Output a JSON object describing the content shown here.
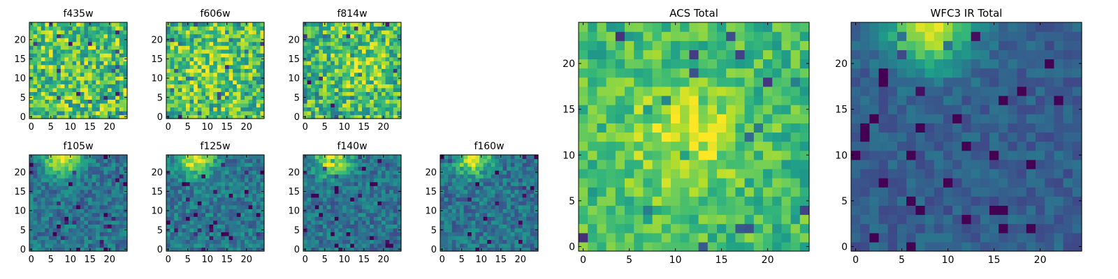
{
  "chart_data": [
    {
      "type": "heatmap",
      "title": "f435w",
      "colormap": "viridis",
      "grid_size": [
        25,
        25
      ],
      "xlim": [
        -0.5,
        24.5
      ],
      "ylim": [
        -0.5,
        24.5
      ],
      "xticks": [
        0,
        5,
        10,
        15,
        20
      ],
      "yticks": [
        0,
        5,
        10,
        15,
        20
      ],
      "xlabel": "",
      "ylabel": "",
      "bright_spot": null,
      "noise_level": "high",
      "mean_level": 0.72
    },
    {
      "type": "heatmap",
      "title": "f606w",
      "colormap": "viridis",
      "grid_size": [
        25,
        25
      ],
      "xlim": [
        -0.5,
        24.5
      ],
      "ylim": [
        -0.5,
        24.5
      ],
      "xticks": [
        0,
        5,
        10,
        15,
        20
      ],
      "yticks": [
        0,
        5,
        10,
        15,
        20
      ],
      "xlabel": "",
      "ylabel": "",
      "bright_spot": {
        "x": 11,
        "y": 12,
        "strength": 0.15
      },
      "noise_level": "high",
      "mean_level": 0.7
    },
    {
      "type": "heatmap",
      "title": "f814w",
      "colormap": "viridis",
      "grid_size": [
        25,
        25
      ],
      "xlim": [
        -0.5,
        24.5
      ],
      "ylim": [
        -0.5,
        24.5
      ],
      "xticks": [
        0,
        5,
        10,
        15,
        20
      ],
      "yticks": [
        0,
        5,
        10,
        15,
        20
      ],
      "xlabel": "",
      "ylabel": "",
      "bright_spot": {
        "x": 14,
        "y": 13,
        "strength": 0.15
      },
      "noise_level": "high",
      "mean_level": 0.68
    },
    {
      "type": "heatmap",
      "title": "f105w",
      "colormap": "viridis",
      "grid_size": [
        25,
        25
      ],
      "xlim": [
        -0.5,
        24.5
      ],
      "ylim": [
        -0.5,
        24.5
      ],
      "xticks": [
        0,
        5,
        10,
        15,
        20
      ],
      "yticks": [
        0,
        5,
        10,
        15,
        20
      ],
      "xlabel": "",
      "ylabel": "",
      "bright_spot": {
        "x": 8,
        "y": 24,
        "strength": 0.6
      },
      "noise_level": "medium",
      "mean_level": 0.38
    },
    {
      "type": "heatmap",
      "title": "f125w",
      "colormap": "viridis",
      "grid_size": [
        25,
        25
      ],
      "xlim": [
        -0.5,
        24.5
      ],
      "ylim": [
        -0.5,
        24.5
      ],
      "xticks": [
        0,
        5,
        10,
        15,
        20
      ],
      "yticks": [
        0,
        5,
        10,
        15,
        20
      ],
      "xlabel": "",
      "ylabel": "",
      "bright_spot": {
        "x": 7,
        "y": 24,
        "strength": 0.6
      },
      "noise_level": "medium",
      "mean_level": 0.4
    },
    {
      "type": "heatmap",
      "title": "f140w",
      "colormap": "viridis",
      "grid_size": [
        25,
        25
      ],
      "xlim": [
        -0.5,
        24.5
      ],
      "ylim": [
        -0.5,
        24.5
      ],
      "xticks": [
        0,
        5,
        10,
        15,
        20
      ],
      "yticks": [
        0,
        5,
        10,
        15,
        20
      ],
      "xlabel": "",
      "ylabel": "",
      "bright_spot": {
        "x": 7,
        "y": 24,
        "strength": 0.6
      },
      "noise_level": "medium",
      "mean_level": 0.38
    },
    {
      "type": "heatmap",
      "title": "f160w",
      "colormap": "viridis",
      "grid_size": [
        25,
        25
      ],
      "xlim": [
        -0.5,
        24.5
      ],
      "ylim": [
        -0.5,
        24.5
      ],
      "xticks": [
        0,
        5,
        10,
        15,
        20
      ],
      "yticks": [
        0,
        5,
        10,
        15,
        20
      ],
      "xlabel": "",
      "ylabel": "",
      "bright_spot": {
        "x": 8,
        "y": 24,
        "strength": 0.6
      },
      "noise_level": "medium",
      "mean_level": 0.38
    },
    {
      "type": "heatmap",
      "title": "ACS Total",
      "colormap": "viridis",
      "grid_size": [
        25,
        25
      ],
      "xlim": [
        -0.5,
        24.5
      ],
      "ylim": [
        -0.5,
        24.5
      ],
      "xticks": [
        0,
        5,
        10,
        15,
        20
      ],
      "yticks": [
        0,
        5,
        10,
        15,
        20
      ],
      "xlabel": "",
      "ylabel": "",
      "bright_spot": {
        "x": 11,
        "y": 12,
        "strength": 0.25
      },
      "noise_level": "medium",
      "mean_level": 0.68
    },
    {
      "type": "heatmap",
      "title": "WFC3 IR Total",
      "colormap": "viridis",
      "grid_size": [
        25,
        25
      ],
      "xlim": [
        -0.5,
        24.5
      ],
      "ylim": [
        -0.5,
        24.5
      ],
      "xticks": [
        0,
        5,
        10,
        15,
        20
      ],
      "yticks": [
        0,
        5,
        10,
        15,
        20
      ],
      "xlabel": "",
      "ylabel": "",
      "bright_spot": {
        "x": 8,
        "y": 24,
        "strength": 0.65
      },
      "noise_level": "low",
      "mean_level": 0.3
    }
  ]
}
